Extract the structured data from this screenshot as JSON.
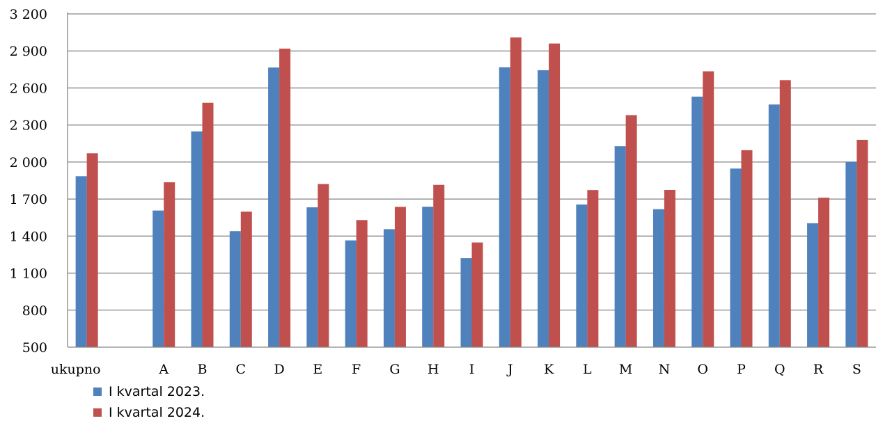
{
  "chart_data": {
    "type": "bar",
    "title": "",
    "xlabel": "",
    "ylabel": "",
    "ylim": [
      500,
      3200
    ],
    "yticks": [
      500,
      800,
      1100,
      1400,
      1700,
      2000,
      2300,
      2600,
      2900,
      3200
    ],
    "ytick_labels": [
      "500",
      "800",
      "1 100",
      "1 400",
      "1 700",
      "2 000",
      "2 300",
      "2 600",
      "2 900",
      "3 200"
    ],
    "grid": true,
    "legend_position": "bottom-left",
    "categories": [
      "ukupno",
      "",
      "A",
      "B",
      "C",
      "D",
      "E",
      "F",
      "G",
      "H",
      "I",
      "J",
      "K",
      "L",
      "M",
      "N",
      "O",
      "P",
      "Q",
      "R",
      "S"
    ],
    "series": [
      {
        "name": "I kvartal 2023.",
        "color": "#4f81bd",
        "values": [
          1885,
          null,
          1607,
          2248,
          1440,
          2766,
          1633,
          1365,
          1456,
          1638,
          1221,
          2768,
          2744,
          1656,
          2128,
          1618,
          2530,
          1947,
          2466,
          1504,
          2002
        ]
      },
      {
        "name": "I kvartal 2024.",
        "color": "#c0504d",
        "values": [
          2071,
          null,
          1836,
          2480,
          1598,
          2919,
          1822,
          1530,
          1637,
          1815,
          1348,
          3010,
          2960,
          1773,
          2380,
          1774,
          2735,
          2096,
          2663,
          1711,
          2180
        ]
      }
    ]
  }
}
